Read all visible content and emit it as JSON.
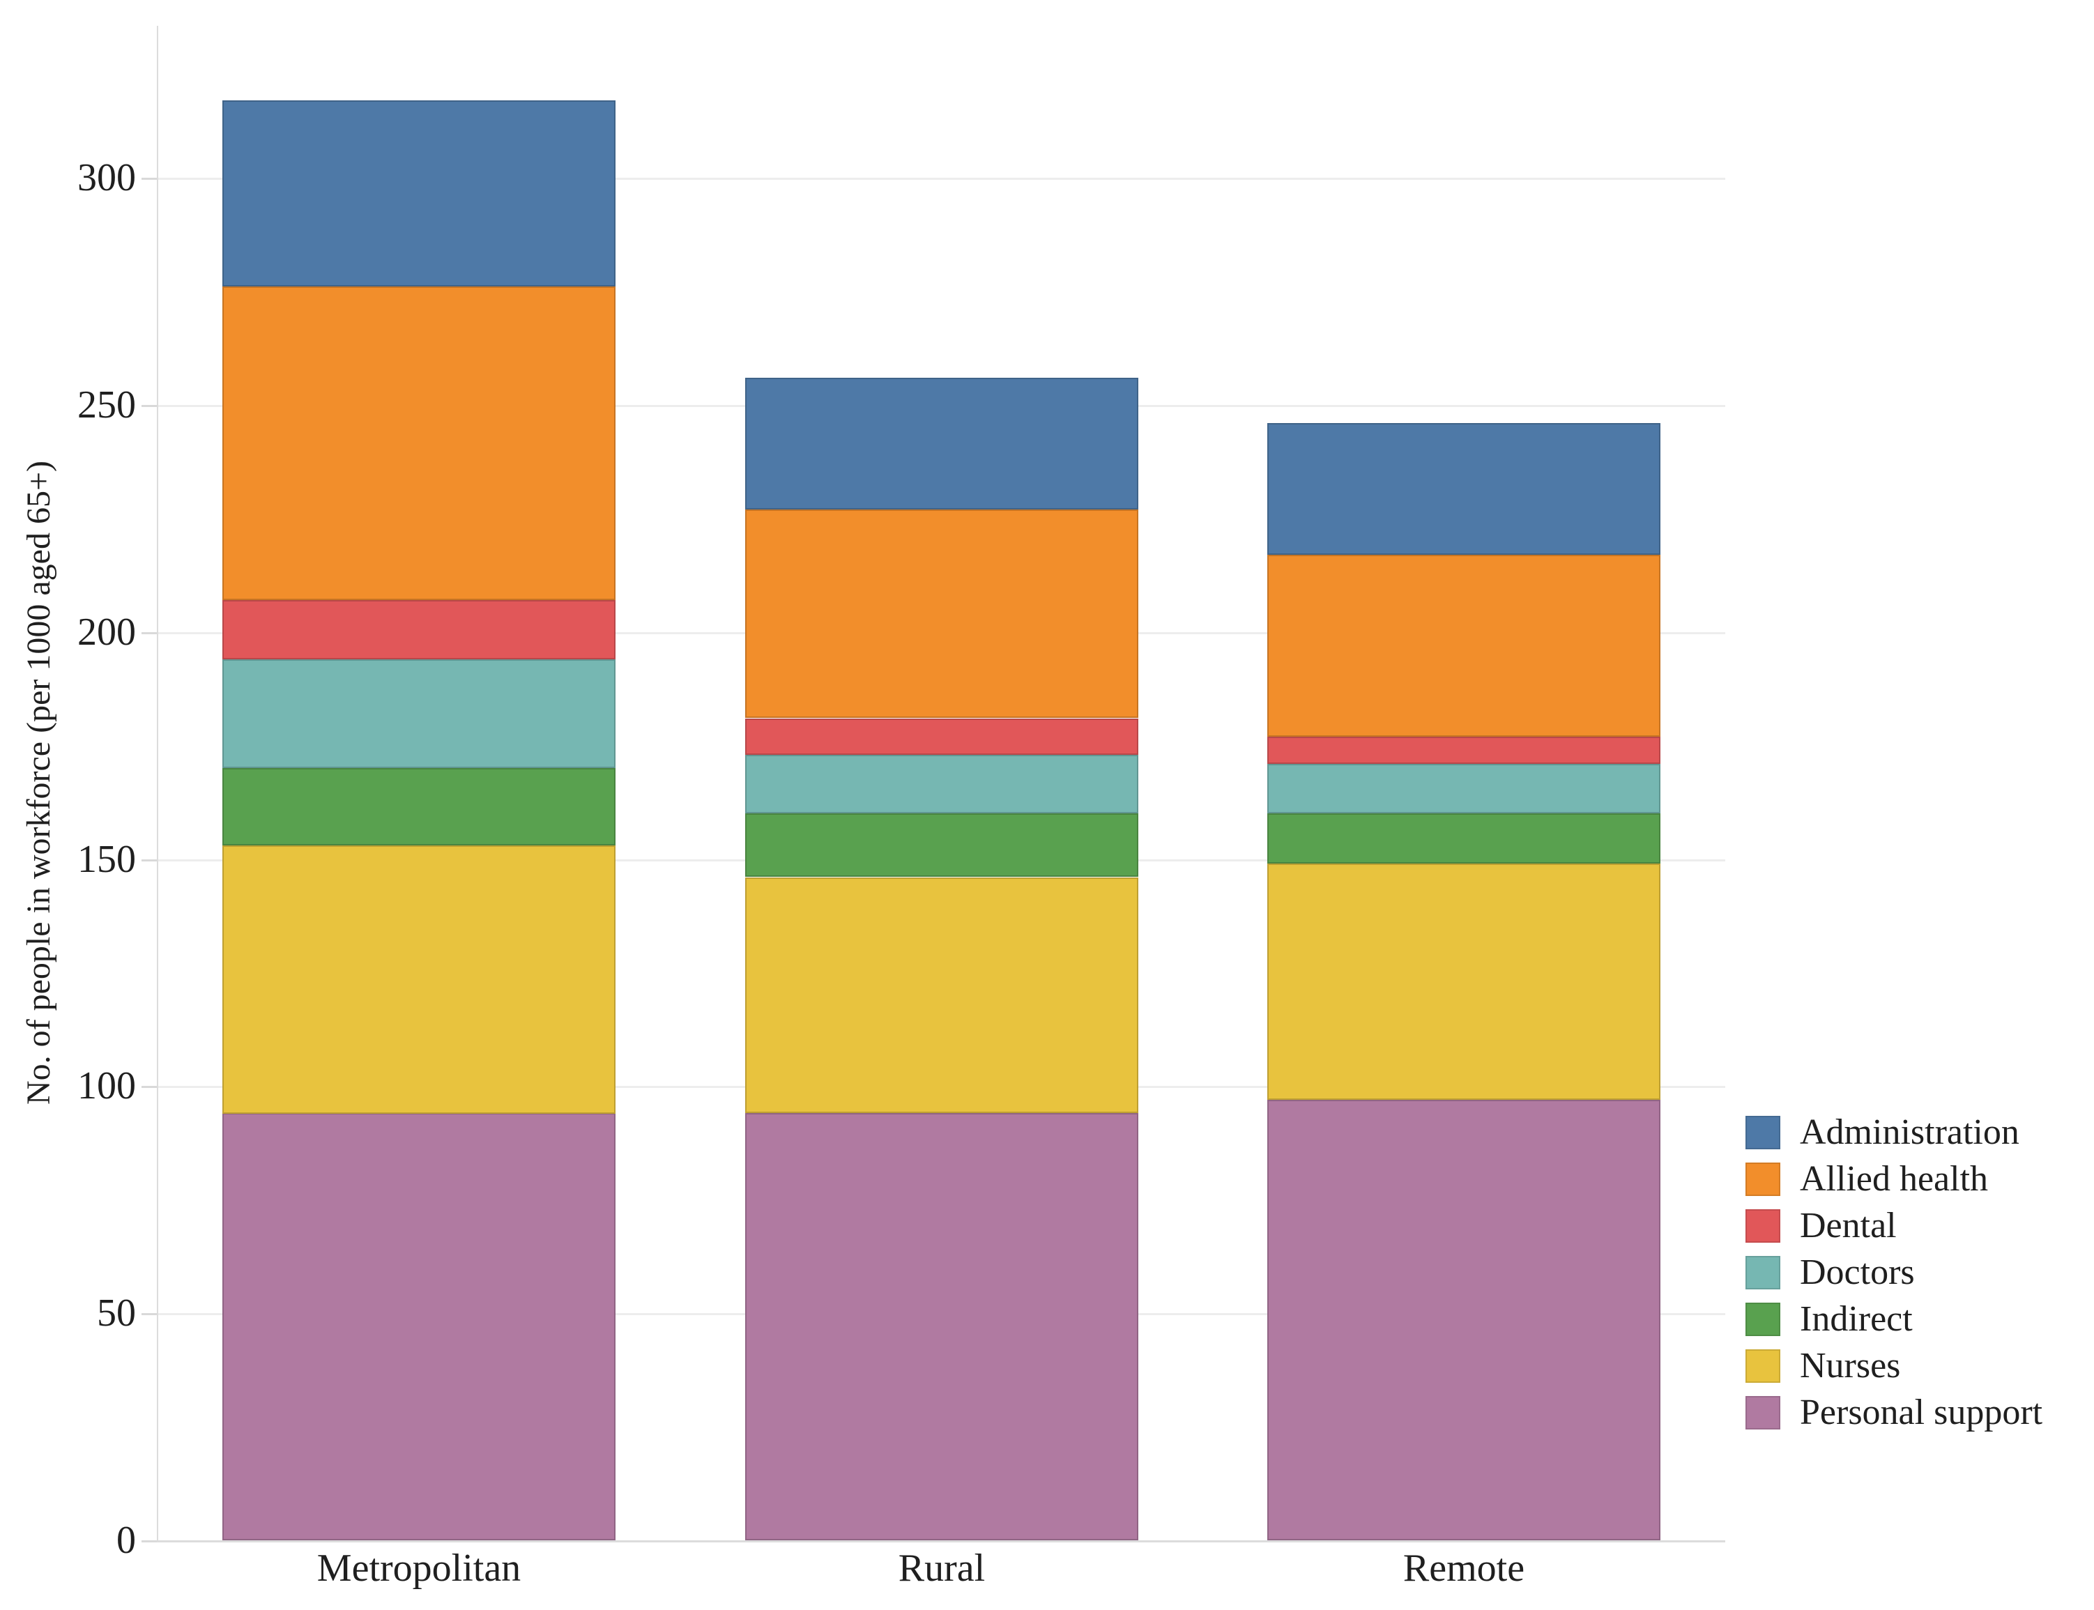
{
  "y_axis": {
    "title": "No. of people in workforce (per 1000 aged 65+)",
    "ticks": [
      0,
      50,
      100,
      150,
      200,
      250,
      300
    ]
  },
  "x_axis": {
    "categories": [
      "Metropolitan",
      "Rural",
      "Remote"
    ]
  },
  "colors": {
    "grid": "#ededed",
    "axis": "#dcdcdc",
    "text": "#1f1f1f",
    "background": "#ffffff"
  },
  "chart_data": {
    "type": "bar",
    "stacked": true,
    "title": "",
    "xlabel": "",
    "ylabel": "No. of people in workforce (per 1000 aged 65+)",
    "ylim": [
      0,
      320
    ],
    "grid": true,
    "legend_position": "right",
    "categories": [
      "Metropolitan",
      "Rural",
      "Remote"
    ],
    "stack_order_bottom_to_top": [
      "Personal support",
      "Nurses",
      "Indirect",
      "Doctors",
      "Dental",
      "Allied health",
      "Administration"
    ],
    "series": [
      {
        "name": "Personal support",
        "color": "#b07aa1",
        "values": [
          94,
          94,
          97
        ]
      },
      {
        "name": "Nurses",
        "color": "#e8c33e",
        "values": [
          59,
          52,
          52
        ]
      },
      {
        "name": "Indirect",
        "color": "#59a14f",
        "values": [
          17,
          14,
          11
        ]
      },
      {
        "name": "Doctors",
        "color": "#76b7b2",
        "values": [
          24,
          13,
          11
        ]
      },
      {
        "name": "Dental",
        "color": "#e15759",
        "values": [
          13,
          8,
          6
        ]
      },
      {
        "name": "Allied health",
        "color": "#f28e2b",
        "values": [
          69,
          46,
          40
        ]
      },
      {
        "name": "Administration",
        "color": "#4e79a7",
        "values": [
          41,
          29,
          29
        ]
      }
    ],
    "totals": [
      317,
      256,
      246
    ],
    "legend_order": [
      "Administration",
      "Allied health",
      "Dental",
      "Doctors",
      "Indirect",
      "Nurses",
      "Personal support"
    ]
  }
}
